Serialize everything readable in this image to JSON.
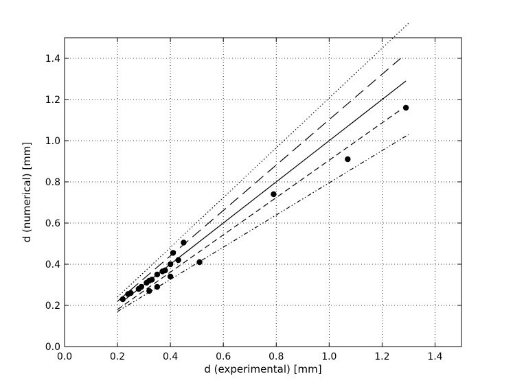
{
  "chart_data": {
    "type": "scatter",
    "title": "",
    "xlabel": "d (experimental) [mm]",
    "ylabel": "d (numerical) [mm]",
    "xlim": [
      0.0,
      1.5
    ],
    "ylim": [
      0.0,
      1.5
    ],
    "xticks": [
      "0.0",
      "0.2",
      "0.4",
      "0.6",
      "0.8",
      "1.0",
      "1.2",
      "1.4"
    ],
    "yticks": [
      "0.0",
      "0.2",
      "0.4",
      "0.6",
      "0.8",
      "1.0",
      "1.2",
      "1.4"
    ],
    "grid": true,
    "legend": false,
    "points": {
      "x": [
        0.22,
        0.24,
        0.25,
        0.28,
        0.29,
        0.31,
        0.32,
        0.33,
        0.32,
        0.35,
        0.35,
        0.37,
        0.38,
        0.4,
        0.4,
        0.41,
        0.43,
        0.45,
        0.51,
        0.79,
        1.07,
        1.29
      ],
      "y": [
        0.23,
        0.255,
        0.26,
        0.28,
        0.29,
        0.31,
        0.32,
        0.325,
        0.27,
        0.29,
        0.35,
        0.365,
        0.37,
        0.4,
        0.34,
        0.455,
        0.42,
        0.505,
        0.41,
        0.74,
        0.91,
        1.16
      ]
    },
    "reference_lines": [
      {
        "style": "solid",
        "x": [
          0.22,
          1.29
        ],
        "y": [
          0.22,
          1.29
        ]
      },
      {
        "style": "dashed-long",
        "x": [
          0.2,
          1.27
        ],
        "y": [
          0.22,
          1.4
        ]
      },
      {
        "style": "dashed-short",
        "x": [
          0.2,
          1.27
        ],
        "y": [
          0.18,
          1.15
        ]
      },
      {
        "style": "dotted",
        "x": [
          0.2,
          1.3
        ],
        "y": [
          0.24,
          1.57
        ]
      },
      {
        "style": "dash-dot-dot",
        "x": [
          0.2,
          1.3
        ],
        "y": [
          0.17,
          1.03
        ]
      }
    ]
  }
}
